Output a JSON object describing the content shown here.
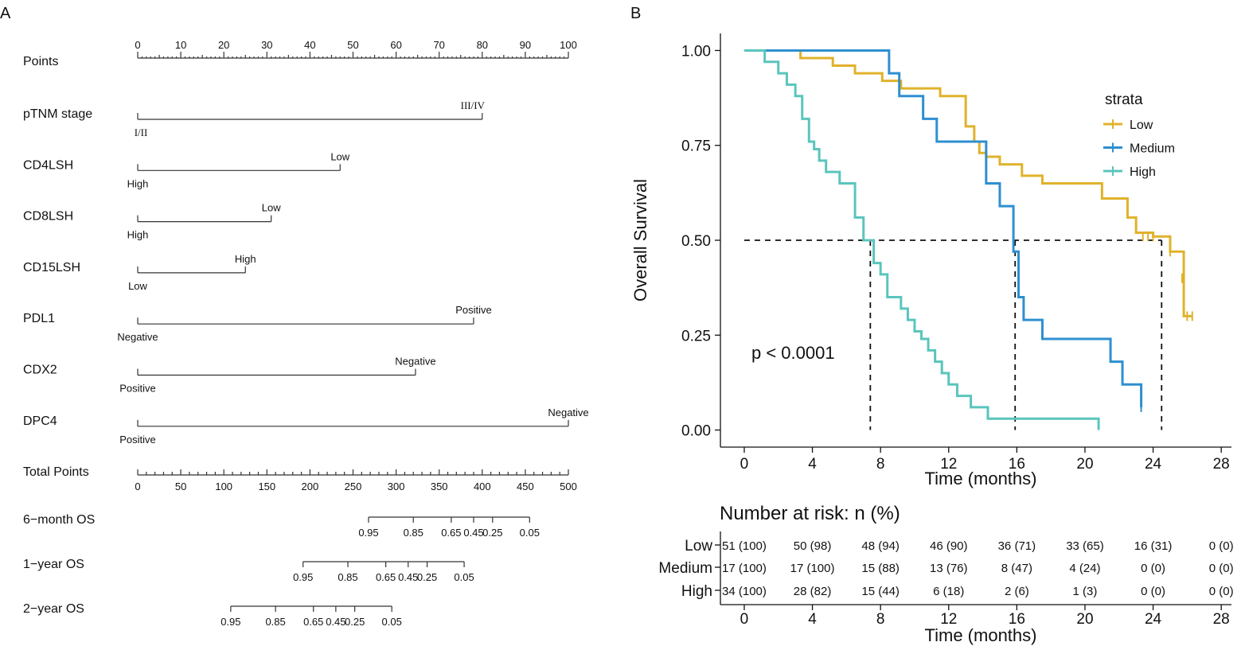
{
  "panels": {
    "a_label": "A",
    "b_label": "B"
  },
  "nomogram": {
    "points": {
      "label": "Points",
      "ticks": [
        "0",
        "10",
        "20",
        "30",
        "40",
        "50",
        "60",
        "70",
        "80",
        "90",
        "100"
      ]
    },
    "variables": [
      {
        "name": "pTNM stage",
        "zero_label": "I/II",
        "end_label": "III/IV",
        "end_points": 80,
        "serif": true
      },
      {
        "name": "CD4LSH",
        "zero_label": "High",
        "end_label": "Low",
        "end_points": 47
      },
      {
        "name": "CD8LSH",
        "zero_label": "High",
        "end_label": "Low",
        "end_points": 31
      },
      {
        "name": "CD15LSH",
        "zero_label": "Low",
        "end_label": "High",
        "end_points": 25
      },
      {
        "name": "PDL1",
        "zero_label": "Negative",
        "end_label": "Positive",
        "end_points": 78
      },
      {
        "name": "CDX2",
        "zero_label": "Positive",
        "end_label": "Negative",
        "end_points": 64.5
      },
      {
        "name": "DPC4",
        "zero_label": "Positive",
        "end_label": "Negative",
        "end_points": 100
      }
    ],
    "total_points": {
      "label": "Total Points",
      "ticks": [
        "0",
        "50",
        "100",
        "150",
        "200",
        "250",
        "300",
        "350",
        "400",
        "450",
        "500"
      ]
    },
    "survival_scales": [
      {
        "name": "6−month OS",
        "ticks": [
          {
            "label": "0.95",
            "total": 268
          },
          {
            "label": "0.85",
            "total": 320
          },
          {
            "label": "0.65",
            "total": 364
          },
          {
            "label": "0.45",
            "total": 390
          },
          {
            "label": "0.25",
            "total": 412
          },
          {
            "label": "0.05",
            "total": 455
          }
        ]
      },
      {
        "name": "1−year OS",
        "ticks": [
          {
            "label": "0.95",
            "total": 192
          },
          {
            "label": "0.85",
            "total": 244
          },
          {
            "label": "0.65",
            "total": 288
          },
          {
            "label": "0.45",
            "total": 314
          },
          {
            "label": "0.25",
            "total": 336
          },
          {
            "label": "0.05",
            "total": 379
          }
        ]
      },
      {
        "name": "2−year OS",
        "ticks": [
          {
            "label": "0.95",
            "total": 108
          },
          {
            "label": "0.85",
            "total": 160
          },
          {
            "label": "0.65",
            "total": 204
          },
          {
            "label": "0.45",
            "total": 230
          },
          {
            "label": "0.25",
            "total": 252
          },
          {
            "label": "0.05",
            "total": 295
          }
        ]
      }
    ]
  },
  "km": {
    "ylabel": "Overall Survival",
    "xlabel": "Time (months)",
    "yticks": [
      "0.00",
      "0.25",
      "0.50",
      "0.75",
      "1.00"
    ],
    "xticks": [
      "0",
      "4",
      "8",
      "12",
      "16",
      "20",
      "24",
      "28"
    ],
    "pvalue": "p < 0.0001",
    "legend_title": "strata",
    "risk_title": "Number at risk: n (%)",
    "risk_xlabel": "Time (months)"
  },
  "chart_data": {
    "type": "line",
    "title": "",
    "xlabel": "Time (months)",
    "ylabel": "Overall Survival",
    "xlim": [
      -1.4,
      28.6
    ],
    "ylim": [
      -0.045,
      1.045
    ],
    "median_reference_line_y": 0.5,
    "median_survival": [
      {
        "strata": "High",
        "time": 7.4
      },
      {
        "strata": "Medium",
        "time": 15.9
      },
      {
        "strata": "Low",
        "time": 24.5
      }
    ],
    "series": [
      {
        "name": "Low",
        "color": "#E0B22B",
        "x": [
          0,
          3.3,
          5.2,
          6.5,
          8.1,
          9.2,
          11.5,
          13.0,
          13.5,
          13.8,
          14.2,
          15.0,
          16.3,
          17.5,
          21.0,
          22.5,
          23.0,
          24.0,
          25.0,
          25.8,
          26.3
        ],
        "y": [
          1.0,
          0.98,
          0.96,
          0.94,
          0.92,
          0.9,
          0.88,
          0.8,
          0.76,
          0.73,
          0.72,
          0.7,
          0.67,
          0.65,
          0.61,
          0.56,
          0.52,
          0.51,
          0.47,
          0.3,
          0.3
        ],
        "censor_x": [
          22.5,
          23.4,
          23.7,
          24.0,
          25.0,
          25.7,
          26.0,
          26.3
        ],
        "censor_y": [
          0.57,
          0.51,
          0.51,
          0.51,
          0.47,
          0.4,
          0.3,
          0.3
        ]
      },
      {
        "name": "Medium",
        "color": "#2E8FD0",
        "x": [
          0,
          8.5,
          9.1,
          10.5,
          11.3,
          14.2,
          15.0,
          15.8,
          16.1,
          16.4,
          17.5,
          20.5,
          21.5,
          22.2,
          23.3
        ],
        "y": [
          1.0,
          0.94,
          0.88,
          0.82,
          0.76,
          0.65,
          0.59,
          0.47,
          0.35,
          0.29,
          0.24,
          0.24,
          0.18,
          0.12,
          0.06
        ],
        "censor_x": [
          23.3
        ],
        "censor_y": [
          0.06
        ]
      },
      {
        "name": "High",
        "color": "#5AC5BD",
        "x": [
          0,
          1.2,
          2.0,
          2.5,
          3.0,
          3.4,
          3.8,
          4.1,
          4.4,
          4.8,
          5.6,
          6.5,
          7.0,
          7.6,
          8.0,
          8.4,
          9.2,
          9.6,
          10.0,
          10.4,
          10.8,
          11.2,
          11.6,
          12.0,
          12.5,
          13.3,
          14.3,
          16.4,
          20.8
        ],
        "y": [
          1.0,
          0.97,
          0.94,
          0.91,
          0.88,
          0.82,
          0.76,
          0.74,
          0.71,
          0.68,
          0.65,
          0.56,
          0.5,
          0.44,
          0.41,
          0.35,
          0.32,
          0.29,
          0.26,
          0.24,
          0.21,
          0.18,
          0.15,
          0.12,
          0.09,
          0.06,
          0.03,
          0.03,
          0.0
        ],
        "censor_x": [],
        "censor_y": []
      }
    ],
    "risk_table": {
      "times": [
        0,
        4,
        8,
        12,
        16,
        20,
        24,
        28
      ],
      "rows": [
        {
          "strata": "Low",
          "values": [
            "51 (100)",
            "50 (98)",
            "48 (94)",
            "46 (90)",
            "36 (71)",
            "33 (65)",
            "16 (31)",
            "0 (0)"
          ]
        },
        {
          "strata": "Medium",
          "values": [
            "17 (100)",
            "17 (100)",
            "15 (88)",
            "13 (76)",
            "8 (47)",
            "4 (24)",
            "0 (0)",
            "0 (0)"
          ]
        },
        {
          "strata": "High",
          "values": [
            "34 (100)",
            "28 (82)",
            "15 (44)",
            "6 (18)",
            "2 (6)",
            "1 (3)",
            "0 (0)",
            "0 (0)"
          ]
        }
      ]
    }
  }
}
